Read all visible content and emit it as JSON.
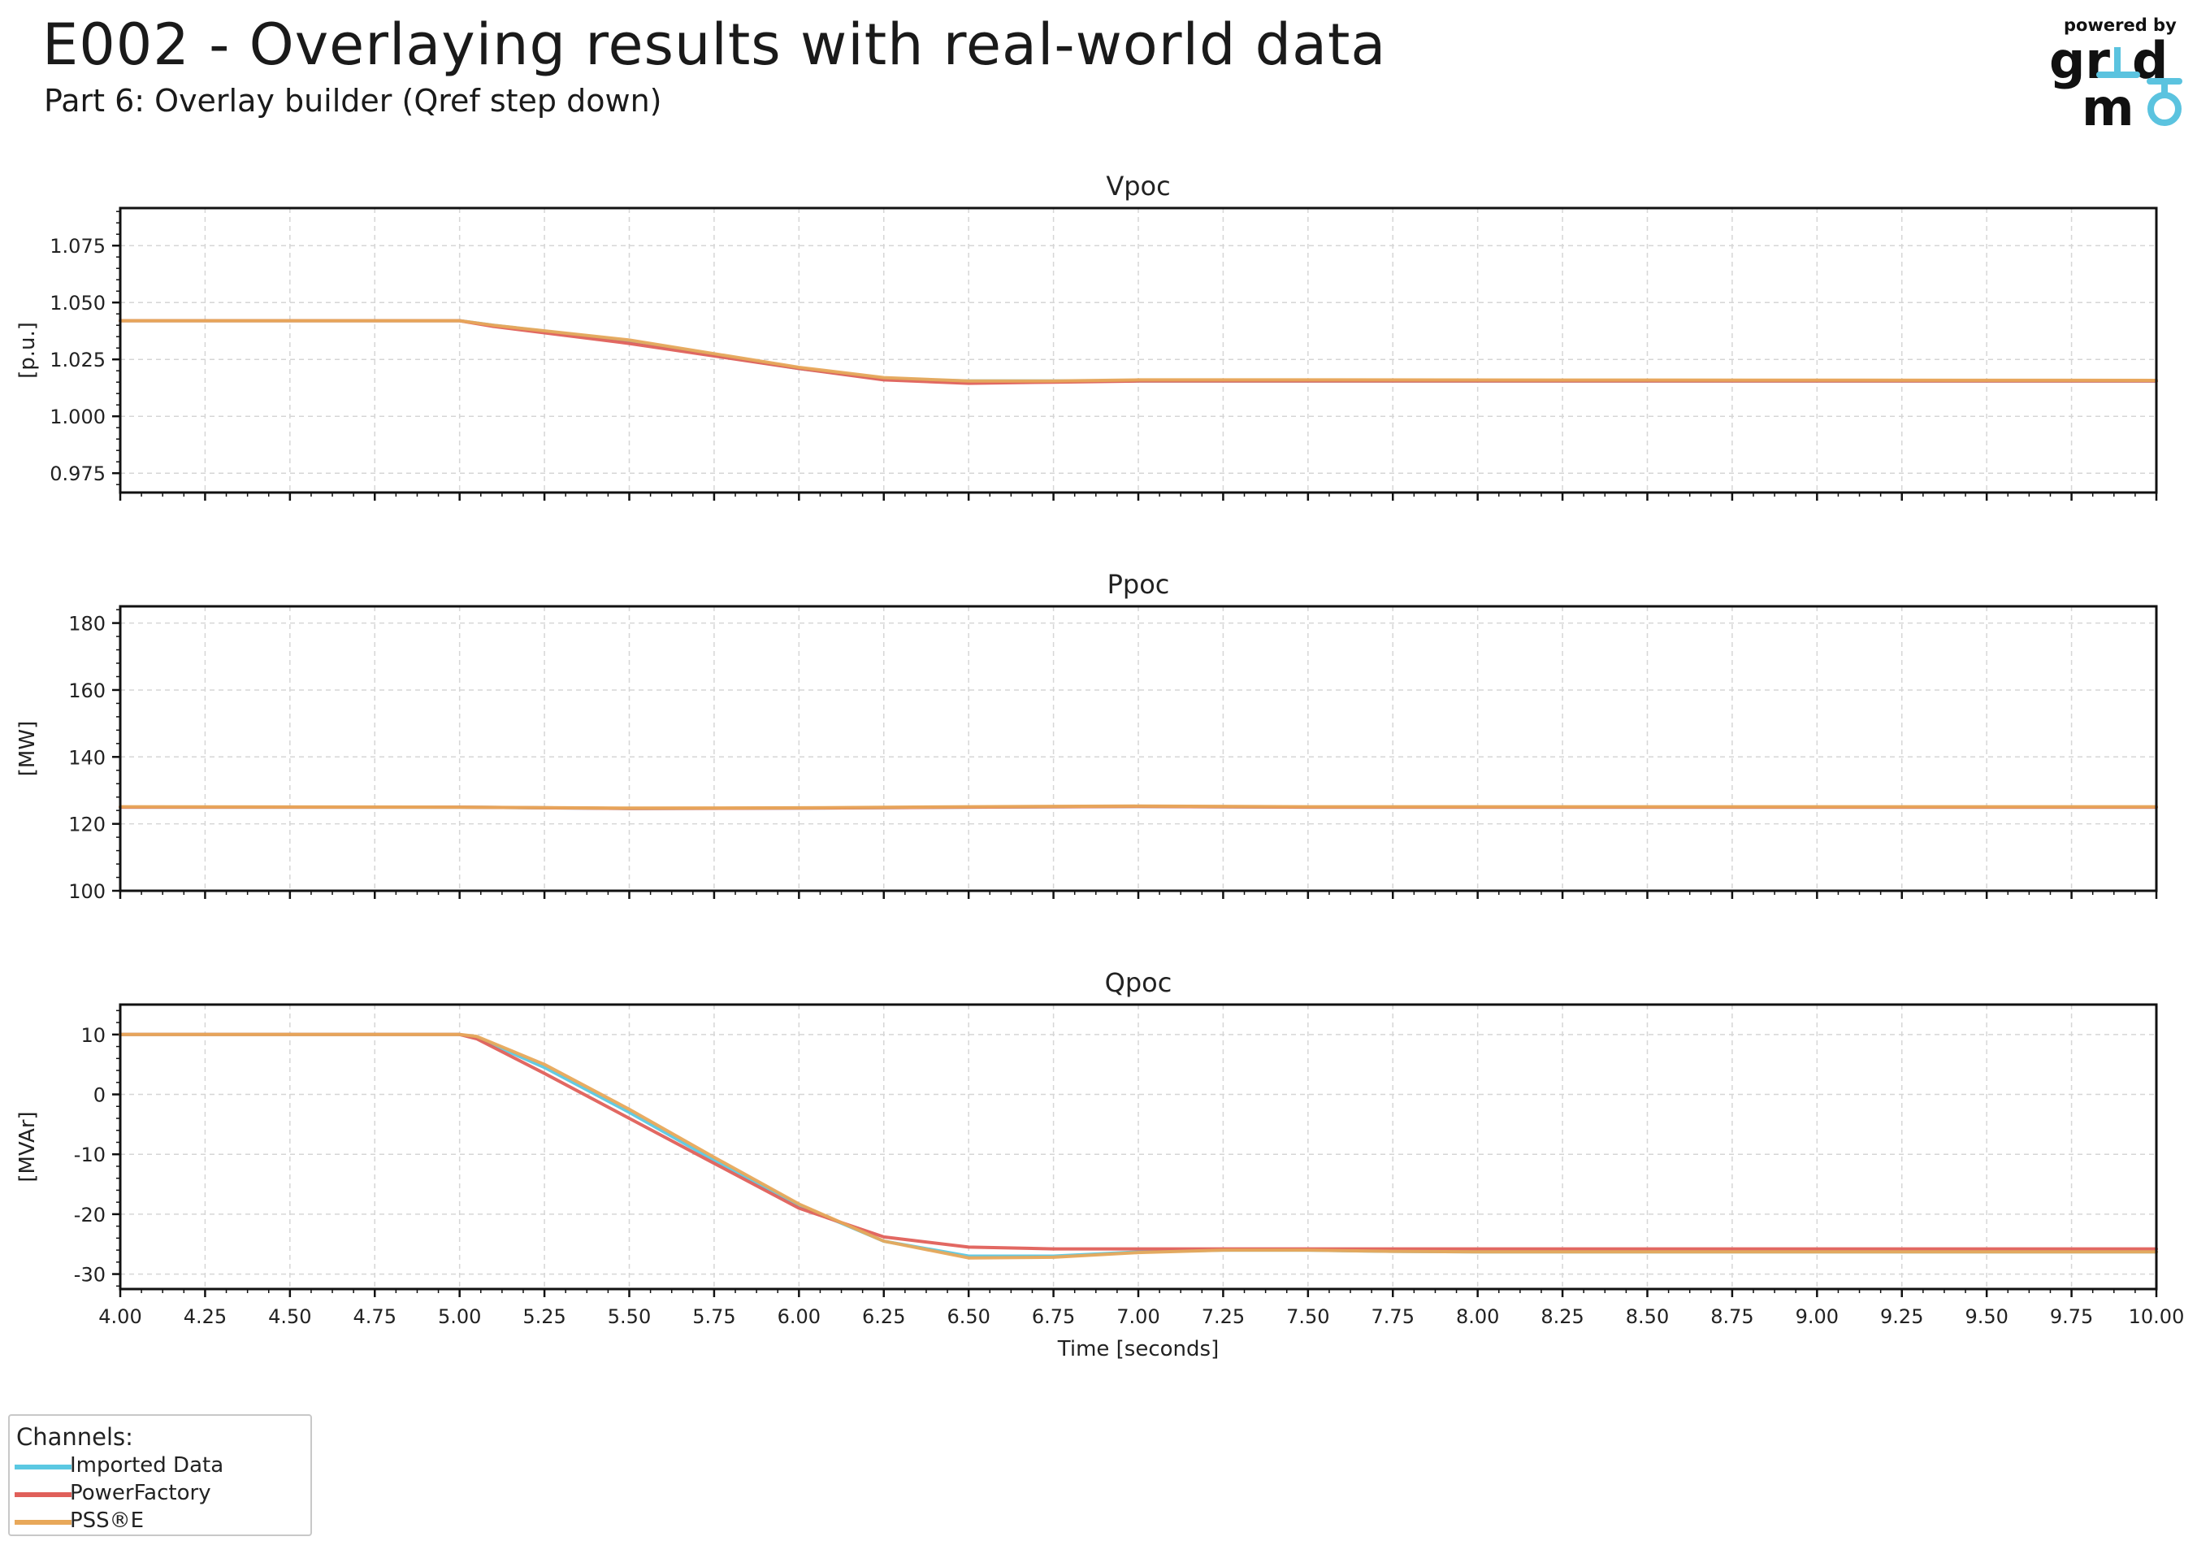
{
  "header": {
    "title": "E002 - Overlaying results with real-world data",
    "subtitle": "Part 6: Overlay builder (Qref step down)"
  },
  "logo": {
    "powered_by": "powered by",
    "brand": "gridmo",
    "brand_color": "#5bc3df",
    "text_color": "#111111"
  },
  "legend": {
    "title": "Channels:",
    "items": [
      {
        "label": "Imported Data",
        "color": "#5bc8e2"
      },
      {
        "label": "PowerFactory",
        "color": "#e0605a"
      },
      {
        "label": "PSS®E",
        "color": "#e8a85a"
      }
    ]
  },
  "chart_data": [
    {
      "type": "line",
      "title": "Vpoc",
      "ylabel": "[p.u.]",
      "xlim": [
        4.0,
        10.0
      ],
      "ylim": [
        0.9665,
        1.0915
      ],
      "yticks": [
        "0.975",
        "1.000",
        "1.025",
        "1.050",
        "1.075"
      ],
      "show_xticklabels": false,
      "grid": true,
      "series": [
        {
          "name": "Imported Data",
          "x": [
            4.0,
            5.0,
            5.1,
            5.5,
            6.0,
            6.25,
            6.5,
            7.0,
            7.5,
            10.0
          ],
          "y": [
            1.042,
            1.042,
            1.04,
            1.033,
            1.021,
            1.0165,
            1.0155,
            1.0155,
            1.0155,
            1.0155
          ]
        },
        {
          "name": "PowerFactory",
          "x": [
            4.0,
            5.0,
            5.1,
            5.5,
            6.0,
            6.25,
            6.5,
            6.75,
            7.0,
            7.5,
            10.0
          ],
          "y": [
            1.042,
            1.042,
            1.0395,
            1.032,
            1.021,
            1.016,
            1.0145,
            1.015,
            1.0155,
            1.0155,
            1.0155
          ]
        },
        {
          "name": "PSS®E",
          "x": [
            4.0,
            5.0,
            5.1,
            5.5,
            6.0,
            6.25,
            6.5,
            6.75,
            7.0,
            7.5,
            10.0
          ],
          "y": [
            1.042,
            1.042,
            1.04,
            1.0335,
            1.0215,
            1.017,
            1.0155,
            1.0155,
            1.016,
            1.016,
            1.0158
          ]
        }
      ]
    },
    {
      "type": "line",
      "title": "Ppoc",
      "ylabel": "[MW]",
      "xlim": [
        4.0,
        10.0
      ],
      "ylim": [
        100,
        185
      ],
      "yticks": [
        "100",
        "120",
        "140",
        "160",
        "180"
      ],
      "show_xticklabels": false,
      "grid": true,
      "series": [
        {
          "name": "Imported Data",
          "x": [
            4.0,
            5.0,
            5.5,
            6.0,
            6.5,
            7.0,
            7.5,
            10.0
          ],
          "y": [
            125.0,
            125.0,
            124.6,
            124.7,
            125.0,
            125.2,
            125.0,
            125.0
          ]
        },
        {
          "name": "PowerFactory",
          "x": [
            4.0,
            5.0,
            5.5,
            6.0,
            6.5,
            7.0,
            7.5,
            10.0
          ],
          "y": [
            125.0,
            125.0,
            124.6,
            124.7,
            125.0,
            125.2,
            125.0,
            125.0
          ]
        },
        {
          "name": "PSS®E",
          "x": [
            4.0,
            5.0,
            5.5,
            6.0,
            6.5,
            7.0,
            7.5,
            10.0
          ],
          "y": [
            125.1,
            125.0,
            124.7,
            124.8,
            125.1,
            125.3,
            125.1,
            125.1
          ]
        }
      ]
    },
    {
      "type": "line",
      "title": "Qpoc",
      "ylabel": "[MVAr]",
      "xlim": [
        4.0,
        10.0
      ],
      "ylim": [
        -32.5,
        15.0
      ],
      "yticks": [
        "-30",
        "-20",
        "-10",
        "0",
        "10"
      ],
      "xticks": [
        "4.00",
        "4.25",
        "4.50",
        "4.75",
        "5.00",
        "5.25",
        "5.50",
        "5.75",
        "6.00",
        "6.25",
        "6.50",
        "6.75",
        "7.00",
        "7.25",
        "7.50",
        "7.75",
        "8.00",
        "8.25",
        "8.50",
        "8.75",
        "9.00",
        "9.25",
        "9.50",
        "9.75",
        "10.00"
      ],
      "xlabel": "Time [seconds]",
      "show_xticklabels": true,
      "grid": true,
      "series": [
        {
          "name": "Imported Data",
          "x": [
            4.0,
            5.0,
            5.05,
            5.25,
            5.5,
            5.75,
            6.0,
            6.25,
            6.5,
            6.75,
            7.0,
            7.25,
            7.5,
            7.75,
            8.0,
            10.0
          ],
          "y": [
            10.0,
            10.0,
            9.5,
            4.5,
            -3.0,
            -11.0,
            -18.5,
            -24.5,
            -27.0,
            -27.0,
            -26.3,
            -26.0,
            -26.0,
            -26.2,
            -26.3,
            -26.3
          ]
        },
        {
          "name": "PowerFactory",
          "x": [
            4.0,
            5.0,
            5.05,
            5.25,
            5.5,
            5.75,
            6.0,
            6.25,
            6.5,
            6.75,
            7.0,
            7.25,
            7.5,
            8.0,
            10.0
          ],
          "y": [
            10.0,
            10.0,
            9.3,
            3.5,
            -4.0,
            -11.5,
            -19.0,
            -23.8,
            -25.5,
            -25.8,
            -25.8,
            -25.8,
            -25.8,
            -25.8,
            -25.8
          ]
        },
        {
          "name": "PSS®E",
          "x": [
            4.0,
            5.0,
            5.05,
            5.25,
            5.5,
            5.75,
            6.0,
            6.25,
            6.5,
            6.75,
            7.0,
            7.25,
            7.5,
            7.75,
            8.0,
            10.0
          ],
          "y": [
            10.0,
            10.0,
            9.7,
            5.0,
            -2.5,
            -10.5,
            -18.3,
            -24.5,
            -27.3,
            -27.2,
            -26.4,
            -26.0,
            -26.0,
            -26.2,
            -26.3,
            -26.3
          ]
        }
      ]
    }
  ]
}
